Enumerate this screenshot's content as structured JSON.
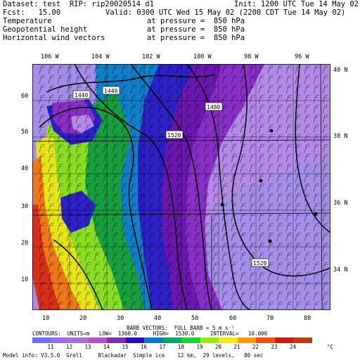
{
  "header": {
    "dataset_line": "Dataset: test  RIP: rip20020514 d1",
    "init_line": "Init: 1200 UTC Tue 14 May 02",
    "fcst_line": "Fcst:   15.00",
    "valid_line": "Valid: 0300 UTC Wed 15 May 02 (2200 CDT Tue 14 May 02)",
    "fields": [
      {
        "name": "Temperature",
        "level": "at pressure =  850 hPa"
      },
      {
        "name": "Geopotential height",
        "level": "at pressure =  850 hPa"
      },
      {
        "name": "Horizontal wind vectors",
        "level": "at pressure =  850 hPa"
      }
    ]
  },
  "lon_labels": [
    "106 W",
    "104 W",
    "102 W",
    "100 W",
    "98 W",
    "96 W"
  ],
  "lat_labels": [
    "40 N",
    "38 N",
    "36 N",
    "34 N"
  ],
  "y_ticks": [
    "60",
    "50",
    "40",
    "30",
    "20",
    "10"
  ],
  "x_ticks": [
    "10",
    "20",
    "30",
    "40",
    "50",
    "60",
    "70",
    "80"
  ],
  "contour_labels": [
    "1440",
    "1440",
    "1480",
    "1520",
    "1520"
  ],
  "footer": {
    "barb_line": "BARB VECTORS:  FULL BARB = 5 m s⁻¹",
    "contour_line": "CONTOURS:  UNITS=m   LOW=  1360.0     HIGH=  1530.0     INTERVAL=   10.000",
    "units": "°C",
    "model_info": "Model info: V3.5.0  Grell     Blackadar  Simple ice    12 km,  29 levels,   80 sec"
  },
  "color_scale": {
    "labels": [
      "11",
      "12",
      "13",
      "14",
      "15",
      "16",
      "17",
      "18",
      "19",
      "20",
      "21",
      "22",
      "23",
      "24"
    ],
    "colors": [
      "#6f6bf7",
      "#9a6ee0",
      "#a96fd8",
      "#b34fc6",
      "#7c2fa6",
      "#2a10b8",
      "#0a78c8",
      "#04a86c",
      "#14d830",
      "#9ee80c",
      "#f0e812",
      "#ff9a10",
      "#f05010",
      "#d01818",
      "#b84010"
    ]
  },
  "map_colors": {
    "lavender": "#a58ee8",
    "light_purple": "#b48ae8",
    "purple": "#8a2ec8",
    "dark_purple": "#6a18b0",
    "blue": "#2c22c8",
    "teal": "#1080c8",
    "green": "#18a040",
    "lime": "#8ade20",
    "yellow": "#e6e414",
    "orange": "#f07818",
    "red": "#d83018"
  }
}
